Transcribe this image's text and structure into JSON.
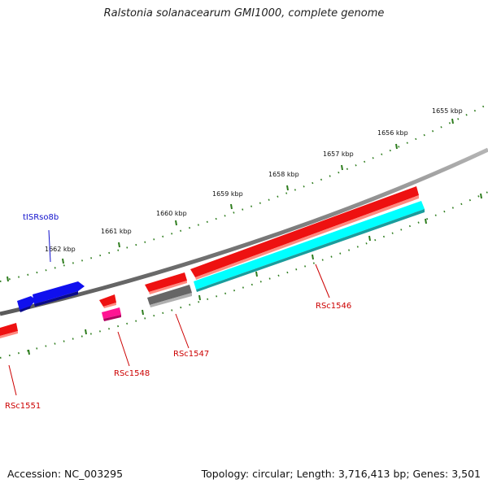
{
  "title": "Ralstonia solanacearum GMI1000, complete genome",
  "footer": {
    "accession": "Accession: NC_003295",
    "stats": "Topology: circular; Length: 3,716,413 bp; Genes: 3,501"
  },
  "colors": {
    "backbone": "#8a8a8a",
    "ruler": "#2e7d1e",
    "forward_gene": "#ee1111",
    "reverse_gene": "#00ffff",
    "pseudo_gene": "#666666",
    "rna_gene": "#ff1493",
    "mobile_element": "#1010ee",
    "label_red": "#cc0000",
    "label_blue": "#1010cc"
  },
  "ruler_labels": [
    "1655 kbp",
    "1656 kbp",
    "1657 kbp",
    "1658 kbp",
    "1659 kbp",
    "1660 kbp",
    "1661 kbp",
    "1662 kbp"
  ],
  "gene_labels": {
    "rsc1546": "RSc1546",
    "rsc1547": "RSc1547",
    "rsc1548": "RSc1548",
    "rsc1551": "RSc1551",
    "tisrso8b": "tISRso8b"
  }
}
